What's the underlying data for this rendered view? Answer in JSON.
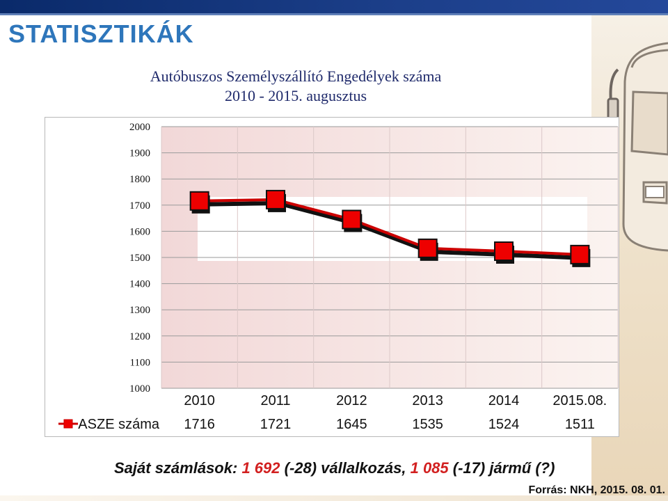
{
  "slide_title": "STATISZTIKÁK",
  "chart_data": {
    "type": "line",
    "title": "Autóbuszos Személyszállító Engedélyek száma",
    "subtitle": "2010 - 2015. augusztus",
    "categories": [
      "2010",
      "2011",
      "2012",
      "2013",
      "2014",
      "2015.08."
    ],
    "series": [
      {
        "name": "ASZE száma",
        "values": [
          1716,
          1721,
          1645,
          1535,
          1524,
          1511
        ],
        "color": "#cc0000"
      }
    ],
    "yticks": [
      "2000",
      "1900",
      "1800",
      "1700",
      "1600",
      "1500",
      "1400",
      "1300",
      "1200",
      "1100",
      "1000"
    ],
    "ylim": [
      1000,
      2000
    ],
    "grid": true,
    "legend": "data-table",
    "xlabel": "",
    "ylabel": ""
  },
  "footer": {
    "prefix": "Saját számlások: ",
    "num1": "1 692",
    "mid": " (-28) vállalkozás, ",
    "num2": "1 085",
    "suffix": " (-17) jármű (?)"
  },
  "source": "Forrás: NKH, 2015. 08. 01."
}
